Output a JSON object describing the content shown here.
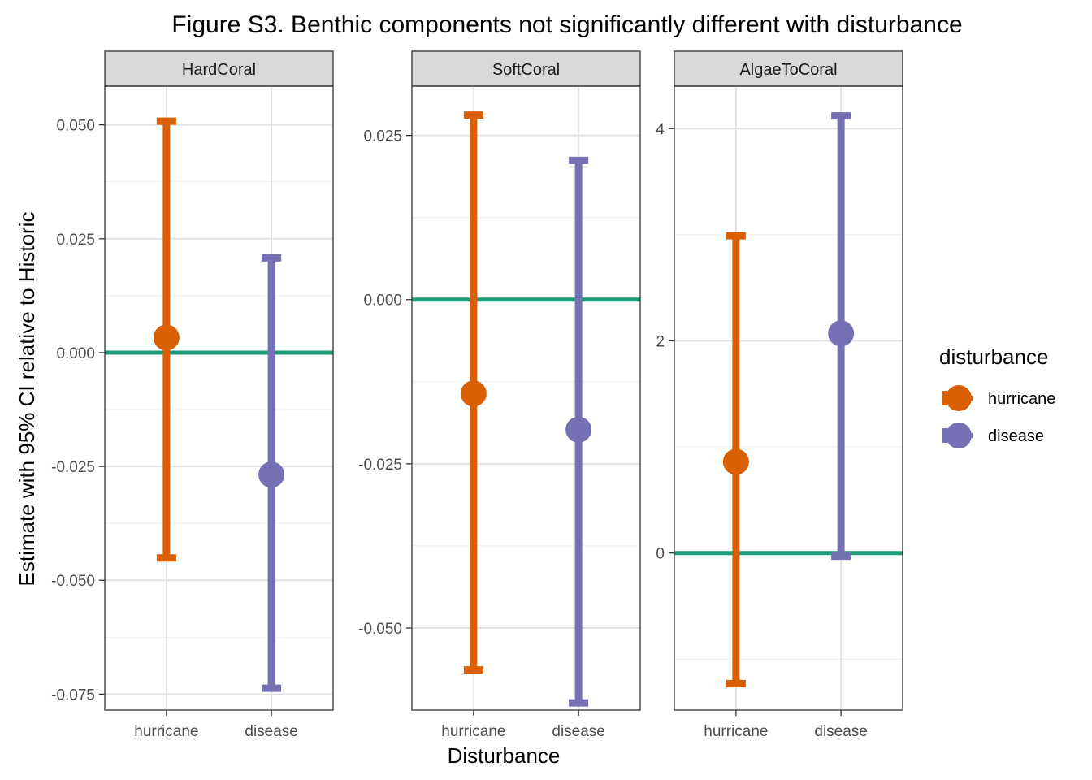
{
  "chart_data": {
    "type": "errorbar",
    "title": "Figure S3. Benthic components not significantly different with disturbance",
    "xlabel": "Disturbance",
    "ylabel": "Estimate with 95% CI relative to Historic",
    "categories": [
      "hurricane",
      "disease"
    ],
    "reference_line": {
      "y": 0,
      "color": "#1b9e77"
    },
    "grid": true,
    "legend": {
      "title": "disturbance",
      "position": "right",
      "items": [
        {
          "label": "hurricane",
          "color": "#d95f02"
        },
        {
          "label": "disease",
          "color": "#7570b3"
        }
      ]
    },
    "panels": [
      {
        "strip": "HardCoral",
        "ylim": [
          -0.0785,
          0.0585
        ],
        "major_ticks": [
          -0.075,
          -0.05,
          -0.025,
          0,
          0.025,
          0.05
        ],
        "tick_labels": [
          "-0.075",
          "-0.050",
          "-0.025",
          "0.000",
          "0.025",
          "0.050"
        ],
        "minor_ticks": [
          -0.0625,
          -0.0375,
          -0.0125,
          0.0125,
          0.0375
        ],
        "points": [
          {
            "category": "hurricane",
            "estimate": 0.0033,
            "lower": -0.0451,
            "upper": 0.0508
          },
          {
            "category": "disease",
            "estimate": -0.0268,
            "lower": -0.0737,
            "upper": 0.0208
          }
        ]
      },
      {
        "strip": "SoftCoral",
        "ylim": [
          -0.0625,
          0.0325
        ],
        "major_ticks": [
          -0.05,
          -0.025,
          0,
          0.025
        ],
        "tick_labels": [
          "-0.050",
          "-0.025",
          "0.000",
          "0.025"
        ],
        "minor_ticks": [
          -0.0375,
          -0.0125,
          0.0125
        ],
        "points": [
          {
            "category": "hurricane",
            "estimate": -0.0143,
            "lower": -0.0564,
            "upper": 0.0281
          },
          {
            "category": "disease",
            "estimate": -0.0198,
            "lower": -0.0614,
            "upper": 0.0212
          }
        ]
      },
      {
        "strip": "AlgaeToCoral",
        "ylim": [
          -1.48,
          4.4
        ],
        "major_ticks": [
          0,
          2,
          4
        ],
        "tick_labels": [
          "0",
          "2",
          "4"
        ],
        "minor_ticks": [
          -1,
          1,
          3
        ],
        "points": [
          {
            "category": "hurricane",
            "estimate": 0.86,
            "lower": -1.23,
            "upper": 2.99
          },
          {
            "category": "disease",
            "estimate": 2.07,
            "lower": -0.03,
            "upper": 4.12
          }
        ]
      }
    ]
  }
}
